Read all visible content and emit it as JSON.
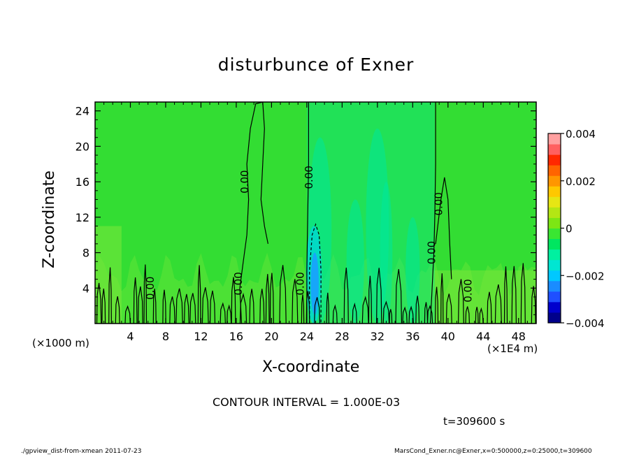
{
  "chart_data": {
    "type": "heatmap",
    "title": "disturbunce of Exner",
    "xlabel": "X-coordinate",
    "ylabel": "Z-coordinate",
    "x_unit_label": "(×1000 m)",
    "x_unit_label2": "(×1E4 m)",
    "xlim": [
      0,
      50
    ],
    "ylim": [
      0,
      25
    ],
    "x_ticks": [
      4,
      8,
      12,
      16,
      20,
      24,
      28,
      32,
      36,
      40,
      44,
      48
    ],
    "y_ticks": [
      4,
      8,
      12,
      16,
      20,
      24
    ],
    "x_tick_labels": [
      "4",
      "8",
      "12",
      "16",
      "20",
      "24",
      "28",
      "32",
      "36",
      "40",
      "44",
      "48"
    ],
    "y_tick_labels": [
      "4",
      "8",
      "12",
      "16",
      "20",
      "24"
    ],
    "contour_interval_text": "CONTOUR INTERVAL = 1.000E-03",
    "contour_labels": [
      {
        "x": 17.0,
        "y": 16.0,
        "text": "0.00"
      },
      {
        "x": 24.3,
        "y": 16.5,
        "text": "0.00"
      },
      {
        "x": 39.0,
        "y": 13.5,
        "text": "0.00"
      },
      {
        "x": 38.2,
        "y": 8.0,
        "text": "0.00"
      },
      {
        "x": 16.3,
        "y": 4.5,
        "text": "0.00"
      },
      {
        "x": 23.3,
        "y": 4.5,
        "text": "0.00"
      },
      {
        "x": 6.3,
        "y": 4.0,
        "text": "0.00"
      },
      {
        "x": 42.3,
        "y": 3.7,
        "text": "0.00"
      }
    ],
    "colorbar": {
      "min": -0.004,
      "max": 0.004,
      "tick_labels": [
        "0.004",
        "0.002",
        "0",
        "−0.002",
        "−0.004"
      ],
      "colors": [
        "#00008b",
        "#0000cd",
        "#1f4fff",
        "#1a8cff",
        "#00c8ff",
        "#00e6d2",
        "#00f0a0",
        "#00e660",
        "#3ae632",
        "#7de614",
        "#b4e614",
        "#e6e614",
        "#ffc800",
        "#ff9600",
        "#ff6400",
        "#ff2800",
        "#ff6060",
        "#ffa0a0"
      ]
    },
    "field_colors": {
      "background": "#33dd33",
      "light_green": "#7ce83a",
      "teal": "#00e89a",
      "cyan": "#00d8d0",
      "blue": "#1aa0ff"
    }
  },
  "annotations": {
    "time": "t=309600 s",
    "footer_left": "./gpview_dist-from-xmean   2011-07-23",
    "footer_right": "MarsCond_Exner.nc@Exner,x=0:500000,z=0:25000,t=309600"
  }
}
